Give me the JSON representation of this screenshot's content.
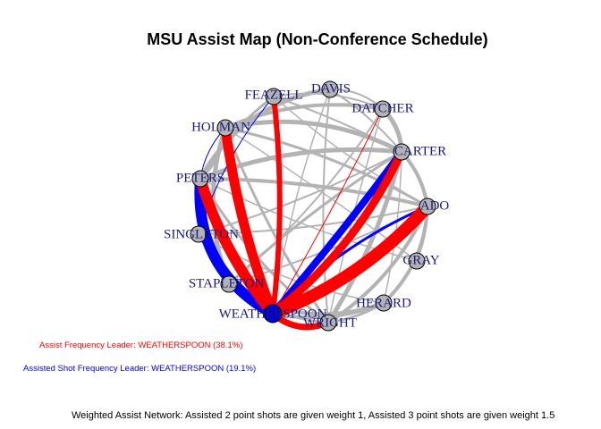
{
  "title": "MSU Assist Map (Non-Conference Schedule)",
  "notes": {
    "assist_leader": "Assist Frequency Leader: WEATHERSPOON (38.1%)",
    "shot_leader": "Assisted Shot Frequency Leader: WEATHERSPOON (19.1%)",
    "caption": "Weighted Assist Network: Assisted 2 point shots are given weight 1, Assisted 3 point shots are given weight 1.5"
  },
  "colors": {
    "assist_leader": "#ff0000",
    "shot_leader": "#0000ff",
    "default_edge": "#b3b3b3",
    "node_fill": "#b3b3b3",
    "leader_node_fill": "#0000cc",
    "label": "#1a1a80"
  },
  "nodes": [
    {
      "id": "davis",
      "label": "DAVIS"
    },
    {
      "id": "feazell",
      "label": "FEAZELL"
    },
    {
      "id": "datcher",
      "label": "DATCHER"
    },
    {
      "id": "holman",
      "label": "HOLMAN"
    },
    {
      "id": "carter",
      "label": "CARTER"
    },
    {
      "id": "peters",
      "label": "PETERS"
    },
    {
      "id": "ado",
      "label": "ADO"
    },
    {
      "id": "singleton",
      "label": "SINGLETON"
    },
    {
      "id": "gray",
      "label": "GRAY"
    },
    {
      "id": "stapleton",
      "label": "STAPLETON"
    },
    {
      "id": "herard",
      "label": "HERARD"
    },
    {
      "id": "weatherspoon",
      "label": "WEATHERSPOON"
    },
    {
      "id": "wright",
      "label": "WRIGHT"
    }
  ]
}
